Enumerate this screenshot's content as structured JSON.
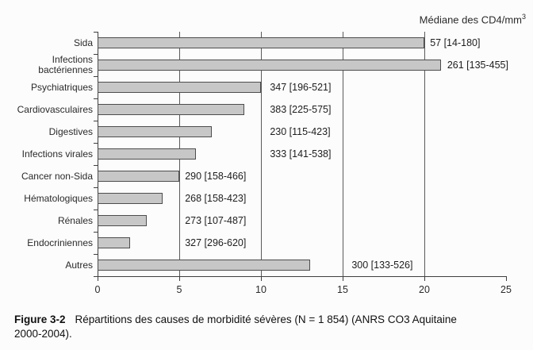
{
  "header": {
    "title_text": "Médiane des CD4/mm",
    "title_sup": "3"
  },
  "chart_data": {
    "type": "bar",
    "orientation": "horizontal",
    "title": "Médiane des CD4/mm³",
    "categories": [
      "Sida",
      "Infections bactériennes",
      "Psychiatriques",
      "Cardiovasculaires",
      "Digestives",
      "Infections virales",
      "Cancer non-Sida",
      "Hématologiques",
      "Rénales",
      "Endocriniennes",
      "Autres"
    ],
    "values": [
      20,
      21,
      10,
      9,
      7,
      6,
      5,
      4,
      3,
      2,
      13
    ],
    "value_labels": [
      "57 [14-180]",
      "261 [135-455]",
      "347 [196-521]",
      "383 [225-575]",
      "230 [115-423]",
      "333 [141-538]",
      "290 [158-466]",
      "268 [158-423]",
      "273 [107-487]",
      "327 [296-620]",
      "300 [133-526]"
    ],
    "label_x_units": [
      20.35,
      21.4,
      10.55,
      10.55,
      10.55,
      10.55,
      5.35,
      5.35,
      5.35,
      5.35,
      15.55
    ],
    "xlim": [
      0,
      25
    ],
    "x_ticks": [
      0,
      5,
      10,
      15,
      20,
      25
    ],
    "gridlines_x": [
      5,
      10,
      15,
      20
    ],
    "grid": true,
    "bar_fill": "#c7c7c7",
    "bar_border": "#4d4d4d"
  },
  "caption": {
    "label": "Figure 3-2",
    "line1": "Répartitions des causes de morbidité sévères (N = 1 854) (ANRS CO3 Aquitaine",
    "line2": "2000-2004)."
  }
}
